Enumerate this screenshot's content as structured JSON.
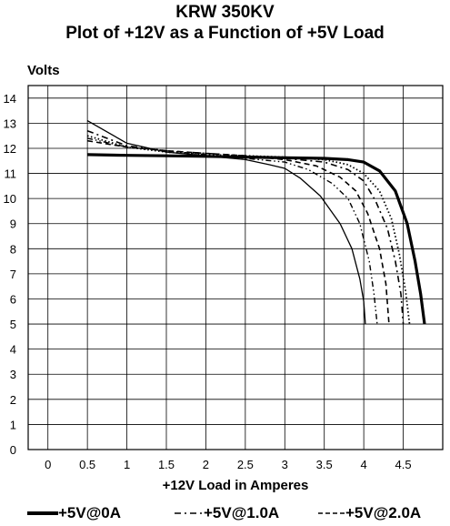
{
  "title_lines": [
    "KRW 350KV",
    "Plot of +12V as a Function of +5V Load"
  ],
  "chart_data": {
    "type": "line",
    "ylabel": "Volts",
    "xlabel": "+12V Load in Amperes",
    "xlim": [
      -0.25,
      5.0
    ],
    "ylim": [
      0,
      14.5
    ],
    "x_ticks": [
      0,
      0.5,
      1,
      1.5,
      2,
      2.5,
      3,
      3.5,
      4,
      4.5
    ],
    "y_ticks": [
      0,
      1,
      2,
      3,
      4,
      5,
      6,
      7,
      8,
      9,
      10,
      11,
      12,
      13,
      14
    ],
    "grid": true,
    "legend_position": "bottom",
    "series": [
      {
        "name": "+5V@0A",
        "style": "solid-thick",
        "points": [
          [
            0.5,
            11.75
          ],
          [
            1.0,
            11.72
          ],
          [
            1.5,
            11.7
          ],
          [
            2.0,
            11.68
          ],
          [
            2.5,
            11.65
          ],
          [
            3.0,
            11.62
          ],
          [
            3.5,
            11.6
          ],
          [
            3.8,
            11.55
          ],
          [
            4.0,
            11.45
          ],
          [
            4.2,
            11.1
          ],
          [
            4.4,
            10.3
          ],
          [
            4.55,
            9.0
          ],
          [
            4.65,
            7.5
          ],
          [
            4.72,
            6.2
          ],
          [
            4.77,
            5.0
          ]
        ]
      },
      {
        "name": "",
        "style": "dotted",
        "points": [
          [
            0.5,
            12.5
          ],
          [
            1.0,
            12.05
          ],
          [
            1.5,
            11.85
          ],
          [
            2.0,
            11.75
          ],
          [
            2.5,
            11.7
          ],
          [
            3.0,
            11.65
          ],
          [
            3.5,
            11.55
          ],
          [
            3.8,
            11.35
          ],
          [
            4.0,
            11.0
          ],
          [
            4.2,
            10.3
          ],
          [
            4.35,
            9.2
          ],
          [
            4.45,
            7.8
          ],
          [
            4.53,
            6.3
          ],
          [
            4.58,
            5.0
          ]
        ]
      },
      {
        "name": "+5V@1.0A",
        "style": "dash-dot",
        "points": [
          [
            0.5,
            12.7
          ],
          [
            1.0,
            12.1
          ],
          [
            1.5,
            11.9
          ],
          [
            2.0,
            11.8
          ],
          [
            2.5,
            11.7
          ],
          [
            3.0,
            11.6
          ],
          [
            3.5,
            11.45
          ],
          [
            3.8,
            11.15
          ],
          [
            4.0,
            10.7
          ],
          [
            4.15,
            9.9
          ],
          [
            4.3,
            8.8
          ],
          [
            4.4,
            7.5
          ],
          [
            4.47,
            6.2
          ],
          [
            4.5,
            5.0
          ]
        ]
      },
      {
        "name": "+5V@2.0A",
        "style": "dashed",
        "points": [
          [
            0.5,
            12.3
          ],
          [
            1.0,
            12.05
          ],
          [
            1.5,
            11.9
          ],
          [
            2.0,
            11.8
          ],
          [
            2.5,
            11.7
          ],
          [
            3.0,
            11.55
          ],
          [
            3.4,
            11.3
          ],
          [
            3.7,
            10.85
          ],
          [
            3.9,
            10.3
          ],
          [
            4.05,
            9.4
          ],
          [
            4.2,
            8.0
          ],
          [
            4.28,
            6.6
          ],
          [
            4.32,
            5.0
          ]
        ]
      },
      {
        "name": "",
        "style": "dash-dot-dot",
        "points": [
          [
            0.5,
            12.4
          ],
          [
            1.0,
            12.05
          ],
          [
            1.5,
            11.9
          ],
          [
            2.0,
            11.75
          ],
          [
            2.5,
            11.6
          ],
          [
            3.0,
            11.45
          ],
          [
            3.3,
            11.15
          ],
          [
            3.6,
            10.6
          ],
          [
            3.8,
            10.0
          ],
          [
            3.95,
            9.0
          ],
          [
            4.07,
            7.5
          ],
          [
            4.13,
            6.2
          ],
          [
            4.17,
            5.0
          ]
        ]
      },
      {
        "name": "",
        "style": "solid-thin",
        "points": [
          [
            0.5,
            13.1
          ],
          [
            1.0,
            12.2
          ],
          [
            1.5,
            11.85
          ],
          [
            2.0,
            11.7
          ],
          [
            2.5,
            11.55
          ],
          [
            2.8,
            11.35
          ],
          [
            3.0,
            11.2
          ],
          [
            3.2,
            10.8
          ],
          [
            3.45,
            10.1
          ],
          [
            3.7,
            9.0
          ],
          [
            3.85,
            8.0
          ],
          [
            3.95,
            6.8
          ],
          [
            4.0,
            5.9
          ],
          [
            4.02,
            5.0
          ]
        ]
      }
    ]
  }
}
